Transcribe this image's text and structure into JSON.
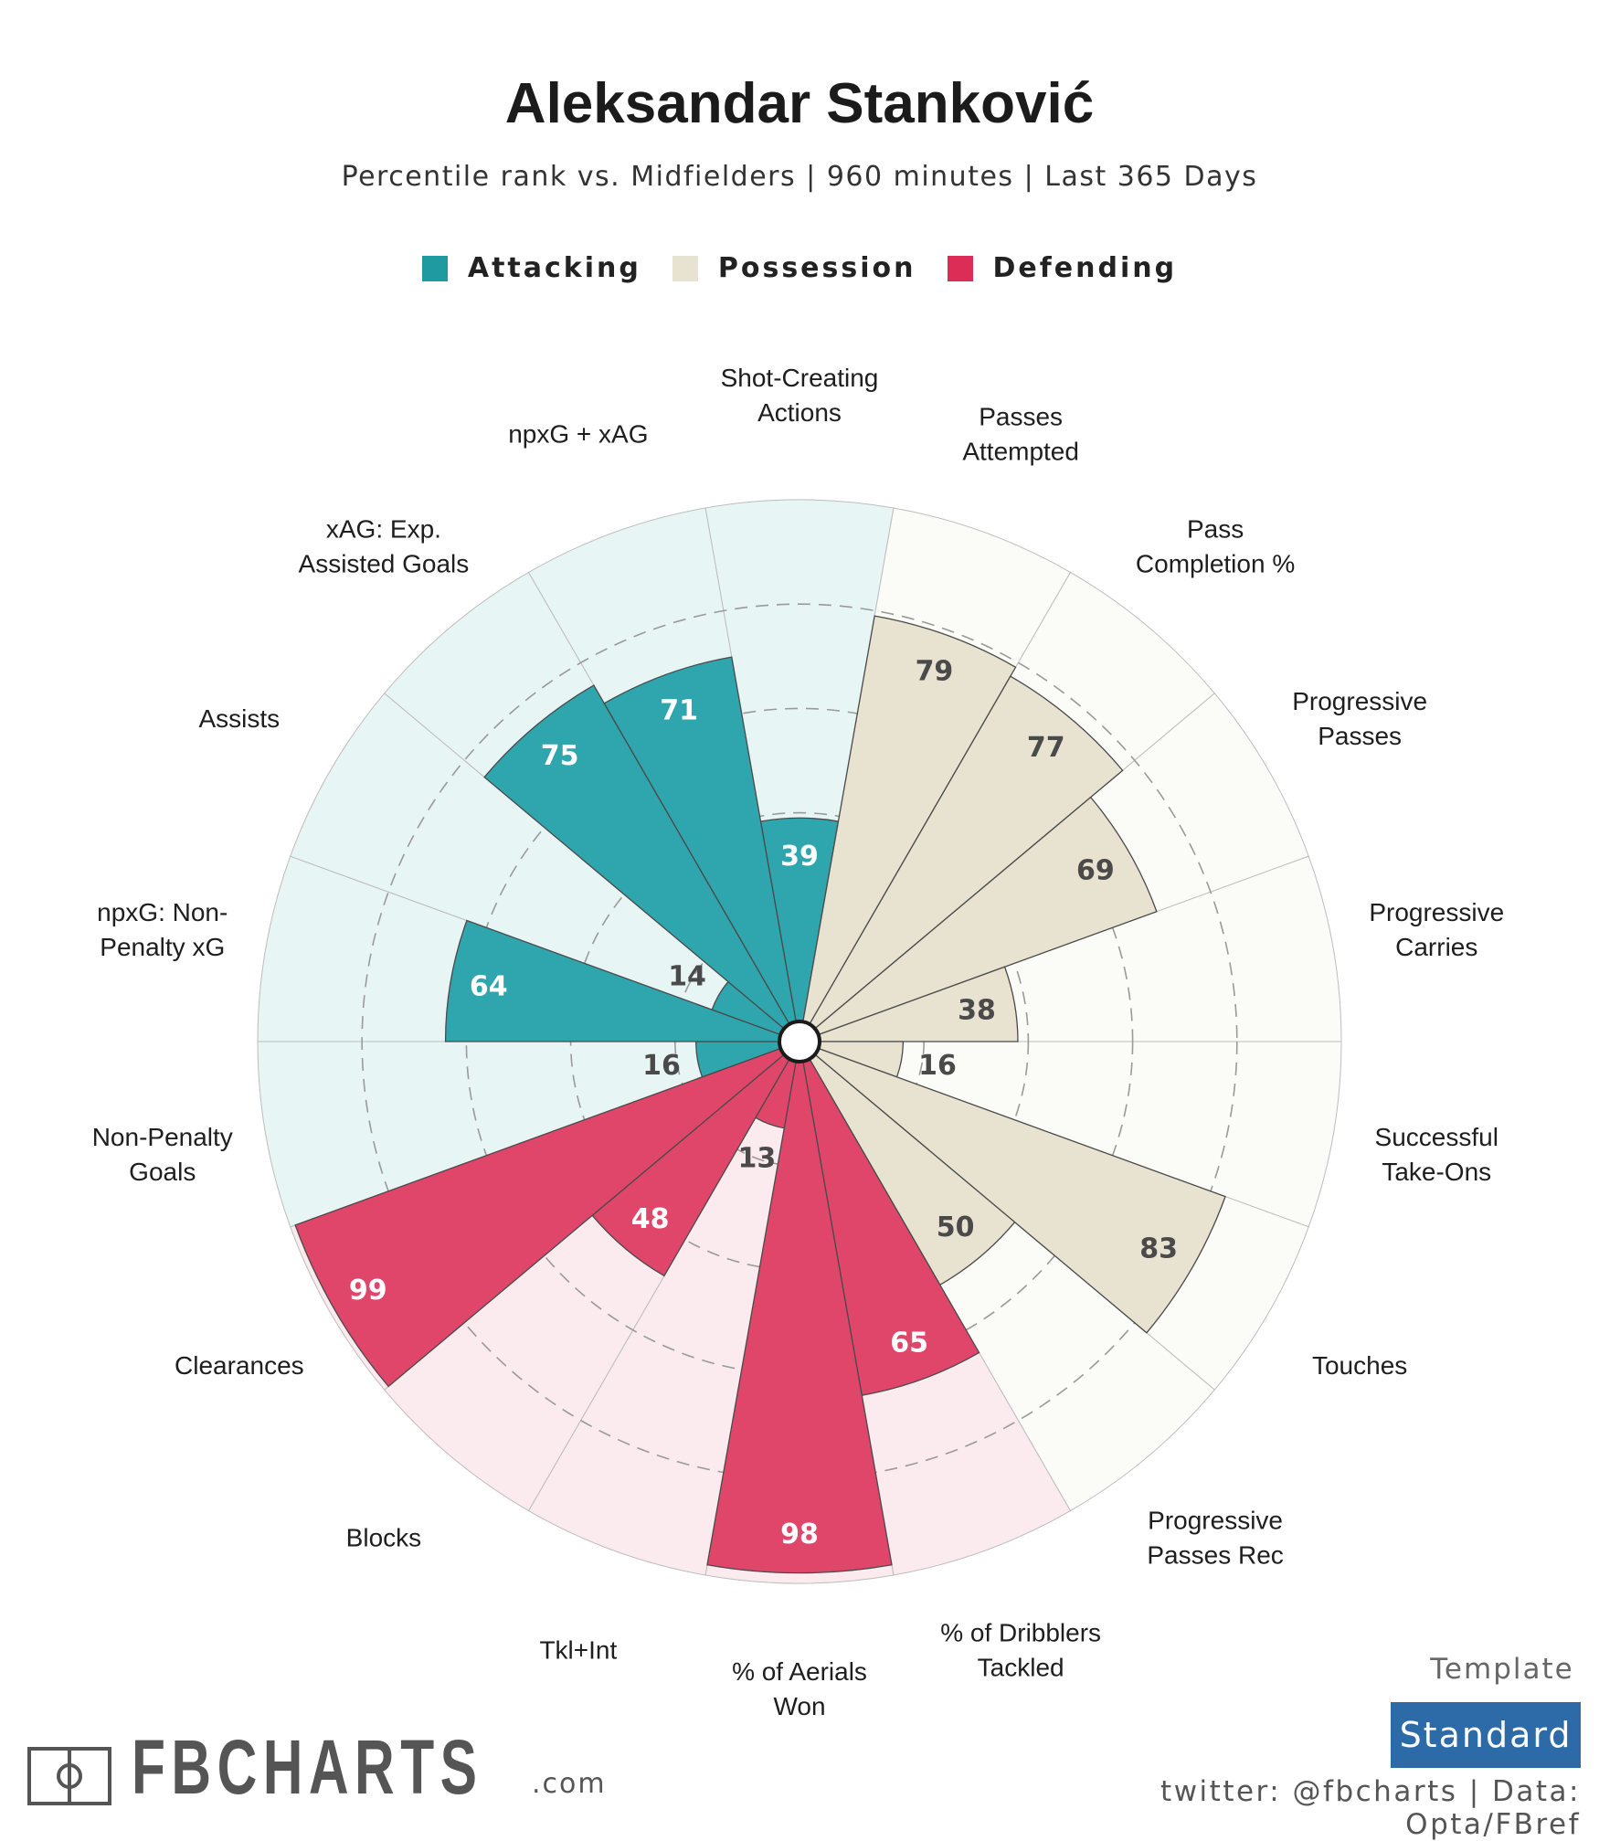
{
  "title": "Aleksandar Stanković",
  "subtitle": "Percentile rank vs. Midfielders | 960 minutes | Last 365 Days",
  "legend": [
    {
      "label": "Attacking",
      "color": "#1f9aa1"
    },
    {
      "label": "Possession",
      "color": "#e8e2d0"
    },
    {
      "label": "Defending",
      "color": "#db2d55"
    }
  ],
  "chart_data": {
    "type": "polar-bar",
    "title": "Aleksandar Stanković",
    "rlim": [
      0,
      100
    ],
    "grid_levels": [
      20,
      40,
      60,
      80
    ],
    "categories": [
      {
        "label": "Shot-Creating Actions",
        "value": 39,
        "group": "Attacking"
      },
      {
        "label": "Passes Attempted",
        "value": 79,
        "group": "Possession"
      },
      {
        "label": "Pass Completion %",
        "value": 77,
        "group": "Possession"
      },
      {
        "label": "Progressive Passes",
        "value": 69,
        "group": "Possession"
      },
      {
        "label": "Progressive Carries",
        "value": 38,
        "group": "Possession"
      },
      {
        "label": "Successful Take-Ons",
        "value": 16,
        "group": "Possession"
      },
      {
        "label": "Touches",
        "value": 83,
        "group": "Possession"
      },
      {
        "label": "Progressive Passes Rec",
        "value": 50,
        "group": "Possession"
      },
      {
        "label": "% of Dribblers Tackled",
        "value": 65,
        "group": "Defending"
      },
      {
        "label": "% of Aerials Won",
        "value": 98,
        "group": "Defending"
      },
      {
        "label": "Tkl+Int",
        "value": 13,
        "group": "Defending"
      },
      {
        "label": "Blocks",
        "value": 48,
        "group": "Defending"
      },
      {
        "label": "Clearances",
        "value": 99,
        "group": "Defending"
      },
      {
        "label": "Non-Penalty Goals",
        "value": 16,
        "group": "Attacking"
      },
      {
        "label": "npxG: Non-Penalty xG",
        "value": 64,
        "group": "Attacking"
      },
      {
        "label": "Assists",
        "value": 14,
        "group": "Attacking"
      },
      {
        "label": "xAG: Exp. Assisted Goals",
        "value": 75,
        "group": "Attacking"
      },
      {
        "label": "npxG + xAG",
        "value": 71,
        "group": "Attacking"
      }
    ],
    "group_colors": {
      "Attacking": {
        "bar": "#2fa5ad",
        "bg": "#e8f5f5",
        "text": "#ffffff"
      },
      "Possession": {
        "bar": "#e8e2d0",
        "bg": "#fbfbf8",
        "text": "#4a4a4a"
      },
      "Defending": {
        "bar": "#e0466a",
        "bg": "#fbeaee",
        "text": "#ffffff"
      }
    }
  },
  "axis_labels": [
    "Shot-Creating\nActions",
    "Passes\nAttempted",
    "Pass\nCompletion %",
    "Progressive\nPasses",
    "Progressive\nCarries",
    "Successful\nTake-Ons",
    "Touches",
    "Progressive\nPasses Rec",
    "% of Dribblers\nTackled",
    "% of Aerials\nWon",
    "Tkl+Int",
    "Blocks",
    "Clearances",
    "Non-Penalty\nGoals",
    "npxG: Non-\nPenalty xG",
    "Assists",
    "xAG: Exp.\nAssisted Goals",
    "npxG + xAG"
  ],
  "footer": {
    "template_label": "Template",
    "template_value": "Standard",
    "credit": "twitter: @fbcharts | Data: Opta/FBref",
    "logo_text": "FBCHARTS",
    "logo_suffix": ".com"
  }
}
